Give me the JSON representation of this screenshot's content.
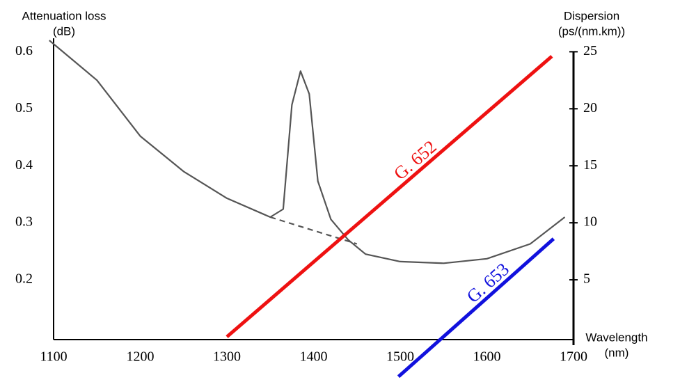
{
  "chart_data": {
    "type": "line",
    "y_label": [
      "Attenuation loss",
      "(dB)"
    ],
    "y2_label": [
      "Dispersion",
      "(ps/(nm.km))"
    ],
    "x_label": [
      "Wavelength",
      "(nm)"
    ],
    "xlim": [
      1100,
      1700
    ],
    "xticks": [
      1100,
      1200,
      1300,
      1400,
      1500,
      1600,
      1700
    ],
    "ylim": [
      0.1,
      0.62
    ],
    "yticks": [
      0.2,
      0.3,
      0.4,
      0.5,
      0.6
    ],
    "y2lim": [
      0,
      26
    ],
    "y2ticks": [
      5,
      10,
      15,
      20,
      25
    ],
    "series": [
      {
        "color": "#555555",
        "x": [
          1095,
          1150,
          1200,
          1250,
          1300,
          1350,
          1365,
          1375,
          1385,
          1395,
          1405,
          1420,
          1440,
          1460,
          1500,
          1550,
          1600,
          1650,
          1690
        ],
        "values": [
          0.62,
          0.55,
          0.452,
          0.39,
          0.343,
          0.31,
          0.324,
          0.507,
          0.566,
          0.526,
          0.373,
          0.306,
          0.27,
          0.245,
          0.232,
          0.229,
          0.237,
          0.263,
          0.31
        ]
      },
      {
        "color": "#555555",
        "dashed": true,
        "x": [
          1350,
          1450
        ],
        "values": [
          0.31,
          0.263
        ]
      },
      {
        "name": "G. 652",
        "color": "#ee1111",
        "axis": "y2",
        "x": [
          1300,
          1675
        ],
        "values": [
          0,
          24.6
        ]
      },
      {
        "name": "G. 653",
        "color": "#1111dd",
        "axis": "y2",
        "x": [
          1498,
          1677
        ],
        "values": [
          -3.5,
          8.6
        ]
      }
    ]
  }
}
